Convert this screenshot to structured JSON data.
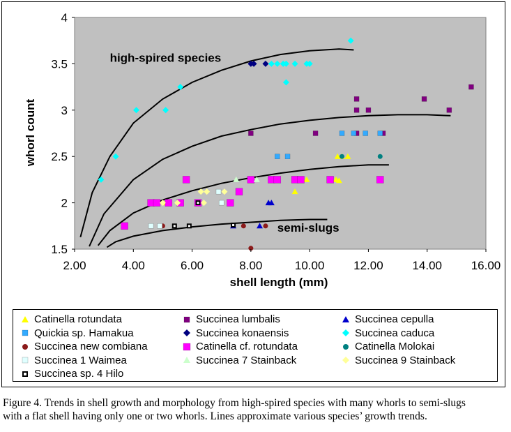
{
  "chart_data": {
    "type": "scatter",
    "title": "",
    "xlabel": "shell length (mm)",
    "ylabel": "whorl count",
    "xlim": [
      2,
      16
    ],
    "ylim": [
      1.5,
      4
    ],
    "x_ticks": [
      "2.00",
      "4.00",
      "6.00",
      "8.00",
      "10.00",
      "12.00",
      "14.00",
      "16.00"
    ],
    "y_ticks": [
      "1.5",
      "2",
      "2.5",
      "3",
      "3.5",
      "4"
    ],
    "grid": false,
    "plot_background": "#c0c0c0",
    "legend_position": "bottom",
    "annotations": [
      {
        "text": "high-spired species",
        "x": 3.2,
        "y": 3.52
      },
      {
        "text": "semi-slugs",
        "x": 8.9,
        "y": 1.69
      }
    ],
    "trend_lines": [
      [
        [
          2.2,
          1.63
        ],
        [
          2.6,
          2.11
        ],
        [
          3.2,
          2.5
        ],
        [
          4.0,
          2.86
        ],
        [
          5.0,
          3.12
        ],
        [
          6.0,
          3.3
        ],
        [
          7.0,
          3.43
        ],
        [
          8.0,
          3.53
        ],
        [
          9.0,
          3.6
        ],
        [
          10.0,
          3.64
        ],
        [
          11.0,
          3.66
        ],
        [
          11.5,
          3.65
        ]
      ],
      [
        [
          2.5,
          1.53
        ],
        [
          3.0,
          1.88
        ],
        [
          4.0,
          2.25
        ],
        [
          5.0,
          2.47
        ],
        [
          6.0,
          2.61
        ],
        [
          7.0,
          2.72
        ],
        [
          8.0,
          2.79
        ],
        [
          9.0,
          2.85
        ],
        [
          10.0,
          2.89
        ],
        [
          11.0,
          2.92
        ],
        [
          12.0,
          2.94
        ],
        [
          13.0,
          2.95
        ],
        [
          14.0,
          2.95
        ],
        [
          14.8,
          2.94
        ]
      ],
      [
        [
          2.8,
          1.54
        ],
        [
          3.2,
          1.7
        ],
        [
          4.0,
          1.89
        ],
        [
          5.0,
          2.03
        ],
        [
          6.0,
          2.13
        ],
        [
          7.0,
          2.21
        ],
        [
          8.0,
          2.27
        ],
        [
          9.0,
          2.32
        ],
        [
          10.0,
          2.36
        ],
        [
          11.0,
          2.39
        ],
        [
          12.0,
          2.41
        ],
        [
          12.7,
          2.41
        ]
      ],
      [
        [
          3.1,
          1.52
        ],
        [
          3.4,
          1.58
        ],
        [
          4.0,
          1.64
        ],
        [
          5.0,
          1.7
        ],
        [
          6.0,
          1.74
        ],
        [
          7.0,
          1.77
        ],
        [
          8.0,
          1.79
        ],
        [
          9.0,
          1.81
        ],
        [
          10.0,
          1.82
        ],
        [
          10.6,
          1.82
        ]
      ]
    ],
    "series": [
      {
        "name": "Catinella rotundata",
        "color": "#ffff00",
        "marker": "triangle",
        "points": [
          [
            4.7,
            2.0
          ],
          [
            5.1,
            2.0
          ],
          [
            9.5,
            2.12
          ],
          [
            9.9,
            2.25
          ],
          [
            10.95,
            2.5
          ],
          [
            11.3,
            2.5
          ],
          [
            11.1,
            2.5
          ],
          [
            10.9,
            2.25
          ],
          [
            11.0,
            2.24
          ]
        ]
      },
      {
        "name": "Succinea lumbalis",
        "color": "#800080",
        "marker": "square",
        "points": [
          [
            8.0,
            2.75
          ],
          [
            10.2,
            2.75
          ],
          [
            11.6,
            3.12
          ],
          [
            11.6,
            3.0
          ],
          [
            12.0,
            3.0
          ],
          [
            13.9,
            3.12
          ],
          [
            14.75,
            3.0
          ],
          [
            15.5,
            3.25
          ],
          [
            12.5,
            2.75
          ],
          [
            11.6,
            2.75
          ]
        ]
      },
      {
        "name": "Succinea cepulla",
        "color": "#0000cc",
        "marker": "triangle",
        "points": [
          [
            8.6,
            2.0
          ],
          [
            8.7,
            2.0
          ],
          [
            8.3,
            1.75
          ],
          [
            7.4,
            1.75
          ]
        ]
      },
      {
        "name": "Quickia sp. Hamakua",
        "color": "#33aaff",
        "marker": "square",
        "points": [
          [
            8.9,
            2.5
          ],
          [
            9.25,
            2.5
          ],
          [
            11.1,
            2.75
          ],
          [
            11.5,
            2.75
          ],
          [
            11.9,
            2.75
          ],
          [
            12.4,
            2.75
          ]
        ]
      },
      {
        "name": "Succinea konaensis",
        "color": "#000080",
        "marker": "diamond",
        "points": [
          [
            8.0,
            3.5
          ],
          [
            8.1,
            3.5
          ],
          [
            8.5,
            3.5
          ]
        ]
      },
      {
        "name": "Succinea caduca",
        "color": "#00ffff",
        "marker": "diamond",
        "points": [
          [
            2.9,
            2.25
          ],
          [
            3.4,
            2.5
          ],
          [
            4.1,
            3.0
          ],
          [
            5.1,
            3.0
          ],
          [
            5.6,
            3.25
          ],
          [
            8.7,
            3.5
          ],
          [
            8.9,
            3.5
          ],
          [
            9.1,
            3.5
          ],
          [
            9.2,
            3.5
          ],
          [
            9.5,
            3.5
          ],
          [
            9.9,
            3.5
          ],
          [
            10.0,
            3.5
          ],
          [
            9.2,
            3.3
          ],
          [
            11.4,
            3.75
          ]
        ]
      },
      {
        "name": "Succinea new combiana",
        "color": "#8b1a1a",
        "marker": "circle",
        "points": [
          [
            5.0,
            1.75
          ],
          [
            7.75,
            1.75
          ],
          [
            8.5,
            1.75
          ],
          [
            8.0,
            1.51
          ]
        ]
      },
      {
        "name": "Catinella cf. rotundata",
        "color": "#ff00ff",
        "marker": "square",
        "points": [
          [
            3.7,
            1.75
          ],
          [
            4.6,
            2.0
          ],
          [
            4.8,
            2.0
          ],
          [
            5.2,
            2.0
          ],
          [
            5.6,
            2.0
          ],
          [
            6.2,
            2.0
          ],
          [
            7.3,
            2.0
          ],
          [
            5.8,
            2.25
          ],
          [
            7.6,
            2.12
          ],
          [
            8.0,
            2.25
          ],
          [
            8.7,
            2.25
          ],
          [
            8.9,
            2.25
          ],
          [
            9.5,
            2.25
          ],
          [
            9.7,
            2.25
          ],
          [
            10.7,
            2.25
          ],
          [
            12.4,
            2.25
          ]
        ]
      },
      {
        "name": "Catinella Molokai",
        "color": "#008080",
        "marker": "circle",
        "points": [
          [
            11.1,
            2.5
          ],
          [
            12.4,
            2.5
          ]
        ]
      },
      {
        "name": "Succinea 1 Waimea",
        "color": "#e0ffff",
        "marker": "square",
        "points": [
          [
            4.6,
            1.75
          ],
          [
            4.9,
            1.75
          ],
          [
            6.9,
            2.12
          ],
          [
            7.0,
            2.0
          ]
        ]
      },
      {
        "name": "Succinea 7 Stainback",
        "color": "#ccffcc",
        "marker": "triangle",
        "points": [
          [
            7.5,
            2.25
          ],
          [
            8.2,
            2.25
          ]
        ]
      },
      {
        "name": "Succinea 9 Stainback",
        "color": "#ffff99",
        "marker": "diamond",
        "points": [
          [
            5.0,
            2.0
          ],
          [
            5.5,
            2.0
          ],
          [
            6.3,
            2.12
          ],
          [
            6.5,
            2.12
          ],
          [
            7.1,
            2.12
          ],
          [
            6.4,
            2.0
          ]
        ]
      },
      {
        "name": "Succinea sp. 4 Hilo",
        "color": "#000000",
        "marker": "hollow-square",
        "points": [
          [
            5.4,
            1.75
          ],
          [
            5.9,
            1.75
          ],
          [
            6.2,
            2.0
          ],
          [
            7.4,
            1.76
          ]
        ]
      }
    ]
  },
  "caption": {
    "line1": "Figure 4. Trends in shell growth and morphology from high-spired species with many whorls to semi-slugs",
    "line2": "with a flat shell having only one or two whorls. Lines approximate various species’ growth trends."
  }
}
